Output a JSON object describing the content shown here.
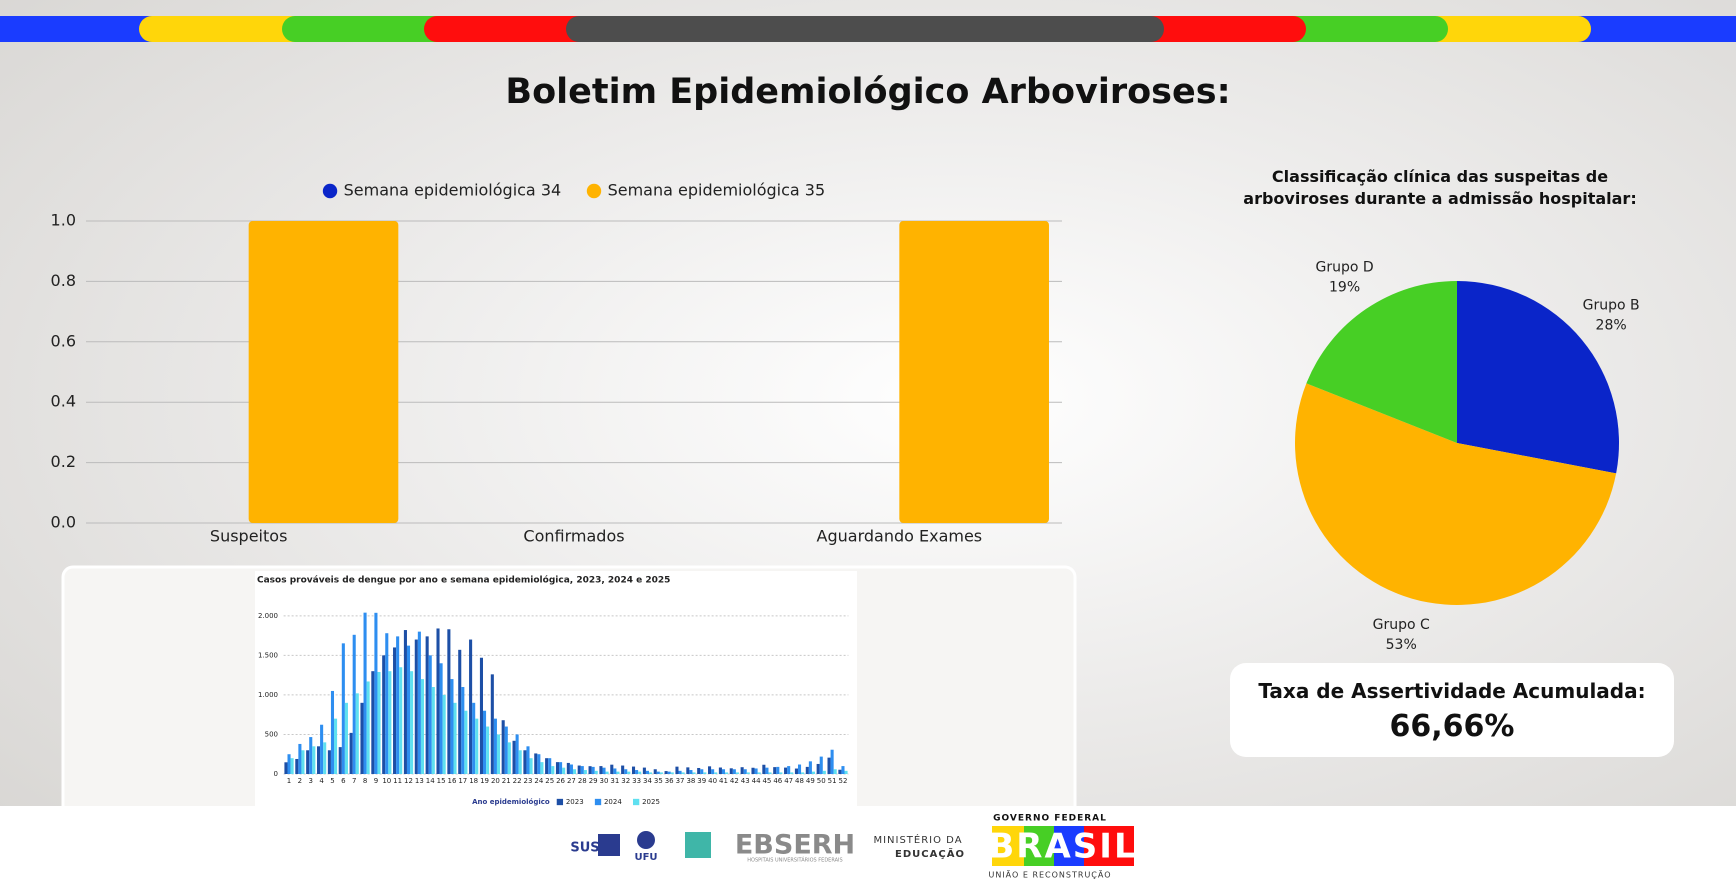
{
  "header": {
    "title": "Boletim Epidemiológico Arboviroses:"
  },
  "chart_data": [
    {
      "type": "bar",
      "legend": "top",
      "grid": true,
      "categories": [
        "Suspeitos",
        "Confirmados",
        "Aguardando Exames"
      ],
      "series": [
        {
          "name": "Semana epidemiológica 34",
          "color": "#0a25c9",
          "values": [
            0,
            0,
            0
          ]
        },
        {
          "name": "Semana epidemiológica 35",
          "color": "#ffb300",
          "values": [
            1,
            0,
            1
          ]
        }
      ],
      "ylim": [
        0,
        1
      ],
      "yticks": [
        {
          "value": 0,
          "label": "0.0"
        },
        0.2,
        0.4,
        0.6,
        0.8,
        {
          "value": 1,
          "label": "1.0"
        }
      ]
    },
    {
      "type": "pie",
      "title": "Classificação clínica das suspeitas de arboviroses durante a admissão hospitalar:",
      "categories": [
        "Grupo B",
        "Grupo C",
        "Grupo D"
      ],
      "values": [
        28,
        53,
        19
      ],
      "value_labels": [
        "28%",
        "53%",
        "19%"
      ],
      "colors": [
        "#0a25c9",
        "#ffb300",
        "#47cf25"
      ]
    },
    {
      "type": "bar",
      "legend": "bottom",
      "grid": true,
      "title": "Casos prováveis de dengue por ano e semana epidemiológica, 2023, 2024 e 2025",
      "legend_title": "Ano epidemiológico",
      "categories": [
        "1",
        "2",
        "3",
        "4",
        "5",
        "6",
        "7",
        "8",
        "9",
        "10",
        "11",
        "12",
        "13",
        "14",
        "15",
        "16",
        "17",
        "18",
        "19",
        "20",
        "21",
        "22",
        "23",
        "24",
        "25",
        "26",
        "27",
        "28",
        "29",
        "30",
        "31",
        "32",
        "33",
        "34",
        "35",
        "36",
        "37",
        "38",
        "39",
        "40",
        "41",
        "42",
        "43",
        "44",
        "45",
        "46",
        "47",
        "48",
        "49",
        "50",
        "51",
        "52"
      ],
      "series": [
        {
          "name": "2023",
          "color": "#1d4fa6",
          "values": [
            148,
            190,
            300,
            350,
            300,
            340,
            520,
            900,
            1300,
            1500,
            1600,
            1820,
            1700,
            1740,
            1840,
            1830,
            1570,
            1700,
            1470,
            1260,
            680,
            420,
            300,
            260,
            200,
            150,
            140,
            107,
            99,
            100,
            118,
            107,
            94,
            81,
            60,
            37,
            93,
            84,
            76,
            97,
            82,
            72,
            86,
            79,
            117,
            87,
            81,
            69,
            90,
            127,
            207,
            54
          ]
        },
        {
          "name": "2024",
          "color": "#2e8ef0",
          "values": [
            250,
            380,
            467,
            623,
            1050,
            1652,
            1760,
            2040,
            2038,
            1780,
            1740,
            1623,
            1800,
            1500,
            1400,
            1200,
            1100,
            900,
            800,
            700,
            600,
            500,
            350,
            250,
            200,
            150,
            120,
            100,
            90,
            80,
            70,
            60,
            50,
            40,
            30,
            30,
            40,
            50,
            60,
            60,
            60,
            60,
            60,
            70,
            80,
            90,
            100,
            120,
            160,
            220,
            307,
            100
          ]
        },
        {
          "name": "2025",
          "color": "#5fe0f0",
          "values": [
            200,
            300,
            350,
            400,
            700,
            900,
            1020,
            1170,
            1290,
            1300,
            1350,
            1300,
            1200,
            1100,
            1000,
            900,
            800,
            700,
            600,
            500,
            400,
            300,
            200,
            150,
            100,
            80,
            60,
            50,
            40,
            30,
            30,
            30,
            30,
            20,
            20,
            20,
            20,
            20,
            20,
            20,
            20,
            20,
            20,
            20,
            20,
            20,
            20,
            20,
            30,
            40,
            60,
            40
          ]
        }
      ],
      "ylim": [
        0,
        2200
      ],
      "yticks": [
        0,
        500,
        {
          "value": 1000,
          "label": "1.000"
        },
        {
          "value": 1500,
          "label": "1.500"
        },
        {
          "value": 2000,
          "label": "2.000"
        }
      ]
    }
  ],
  "kpi": {
    "label": "Taxa de Assertividade Acumulada:",
    "value": "66,66%"
  },
  "footer": {
    "logos": [
      "SUS",
      "UFU",
      "EBSERH",
      "HOSPITAIS UNIVERSITÁRIOS FEDERAIS",
      "MINISTÉRIO DA",
      "EDUCAÇÃO",
      "GOVERNO FEDERAL",
      "BRASIL",
      "UNIÃO E RECONSTRUÇÃO"
    ]
  }
}
